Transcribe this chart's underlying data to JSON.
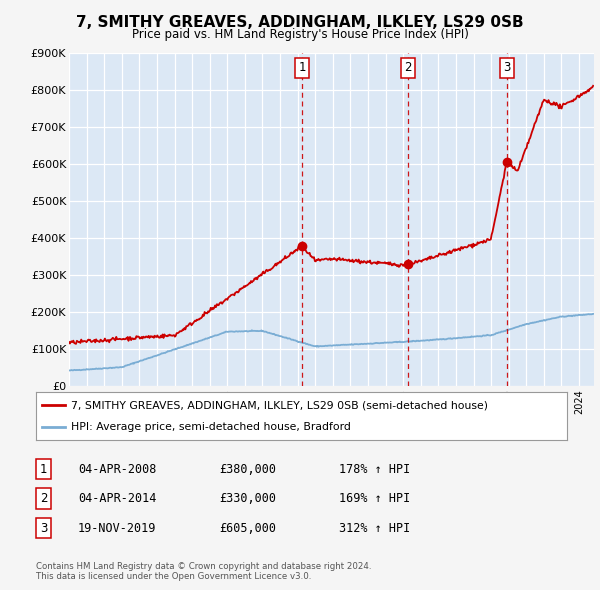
{
  "title": "7, SMITHY GREAVES, ADDINGHAM, ILKLEY, LS29 0SB",
  "subtitle": "Price paid vs. HM Land Registry's House Price Index (HPI)",
  "background_color": "#f0f0f0",
  "plot_bg_color": "#dce8f5",
  "grid_color": "#ffffff",
  "ylim": [
    0,
    900000
  ],
  "yticks": [
    0,
    100000,
    200000,
    300000,
    400000,
    500000,
    600000,
    700000,
    800000,
    900000
  ],
  "ytick_labels": [
    "£0",
    "£100K",
    "£200K",
    "£300K",
    "£400K",
    "£500K",
    "£600K",
    "£700K",
    "£800K",
    "£900K"
  ],
  "hpi_color": "#7aadd4",
  "price_color": "#cc0000",
  "vline_color": "#cc0000",
  "legend_label_price": "7, SMITHY GREAVES, ADDINGHAM, ILKLEY, LS29 0SB (semi-detached house)",
  "legend_label_hpi": "HPI: Average price, semi-detached house, Bradford",
  "sales": [
    {
      "date_num": 2008.25,
      "price": 380000,
      "label": "1"
    },
    {
      "date_num": 2014.25,
      "price": 330000,
      "label": "2"
    },
    {
      "date_num": 2019.9,
      "price": 605000,
      "label": "3"
    }
  ],
  "table_rows": [
    [
      "1",
      "04-APR-2008",
      "£380,000",
      "178% ↑ HPI"
    ],
    [
      "2",
      "04-APR-2014",
      "£330,000",
      "169% ↑ HPI"
    ],
    [
      "3",
      "19-NOV-2019",
      "£605,000",
      "312% ↑ HPI"
    ]
  ],
  "footer_text": "Contains HM Land Registry data © Crown copyright and database right 2024.\nThis data is licensed under the Open Government Licence v3.0."
}
